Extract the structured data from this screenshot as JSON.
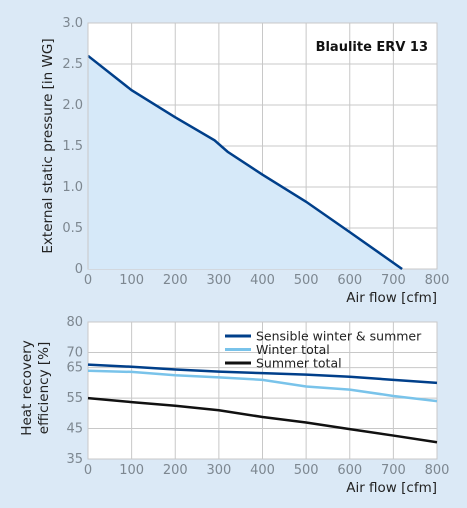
{
  "chart_data": [
    {
      "type": "area",
      "title": "Blaulite ERV 13",
      "xlabel": "Air flow [cfm]",
      "ylabel": "External static pressure [in WG]",
      "xlim": [
        0,
        800
      ],
      "ylim": [
        0,
        3.0
      ],
      "x_ticks": [
        "0",
        "100",
        "200",
        "300",
        "400",
        "500",
        "600",
        "700",
        "800"
      ],
      "y_ticks": [
        "0",
        "0.5",
        "1.0",
        "1.5",
        "2.0",
        "2.5",
        "3.0"
      ],
      "grid": true,
      "series": [
        {
          "points": [
            [
              0,
              2.6
            ],
            [
              100,
              2.18
            ],
            [
              200,
              1.85
            ],
            [
              290,
              1.57
            ],
            [
              320,
              1.43
            ],
            [
              400,
              1.15
            ],
            [
              500,
              0.82
            ],
            [
              600,
              0.45
            ],
            [
              720,
              0.0
            ]
          ]
        }
      ],
      "colors": {
        "line": "#003f8a",
        "fill": "#d6e9f9"
      }
    },
    {
      "type": "line",
      "xlabel": "Air flow [cfm]",
      "ylabel": "Heat recovery efficiency [%]",
      "xlim": [
        0,
        800
      ],
      "ylim": [
        35,
        80
      ],
      "x_ticks": [
        "0",
        "100",
        "200",
        "300",
        "400",
        "500",
        "600",
        "700",
        "800"
      ],
      "y_ticks": [
        "35",
        "45",
        "55",
        "65",
        "70",
        "80"
      ],
      "grid": true,
      "legend_position": "top-right",
      "series": [
        {
          "name": "Sensible winter & summer",
          "color": "#003f8a",
          "points": [
            [
              0,
              66
            ],
            [
              100,
              65.3
            ],
            [
              200,
              64.4
            ],
            [
              300,
              63.7
            ],
            [
              400,
              63.2
            ],
            [
              500,
              62.7
            ],
            [
              600,
              62
            ],
            [
              700,
              61
            ],
            [
              800,
              60
            ]
          ]
        },
        {
          "name": "Winter total",
          "color": "#79c3ea",
          "points": [
            [
              0,
              64
            ],
            [
              100,
              63.6
            ],
            [
              200,
              62.5
            ],
            [
              300,
              61.8
            ],
            [
              400,
              61
            ],
            [
              500,
              58.8
            ],
            [
              600,
              57.8
            ],
            [
              700,
              55.7
            ],
            [
              800,
              54
            ]
          ]
        },
        {
          "name": "Summer total",
          "color": "#111111",
          "points": [
            [
              0,
              55
            ],
            [
              100,
              53.7
            ],
            [
              200,
              52.5
            ],
            [
              300,
              51
            ],
            [
              400,
              48.8
            ],
            [
              500,
              47
            ],
            [
              600,
              44.8
            ],
            [
              700,
              42.7
            ],
            [
              800,
              40.5
            ]
          ]
        }
      ]
    }
  ]
}
